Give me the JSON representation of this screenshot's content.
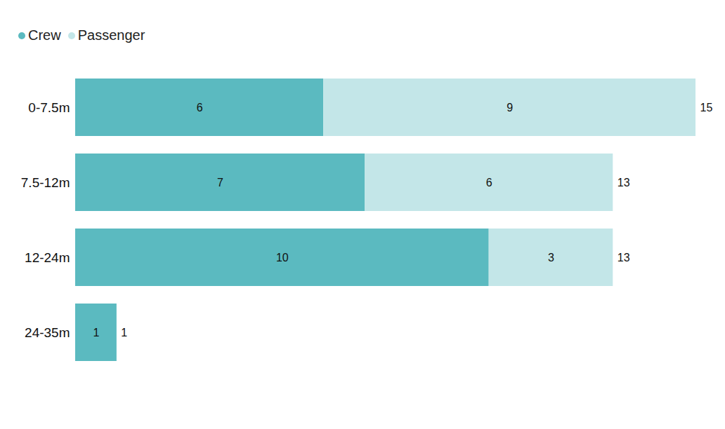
{
  "chart_data": {
    "type": "bar",
    "orientation": "horizontal",
    "stacked": true,
    "data_labels": true,
    "tick_labels": "y",
    "legend": "top-left",
    "categories": [
      "0-7.5m",
      "7.5-12m",
      "12-24m",
      "24-35m"
    ],
    "series": [
      {
        "name": "Crew",
        "color": "#5bbac0",
        "values": [
          6,
          7,
          10,
          1
        ]
      },
      {
        "name": "Passenger",
        "color": "#c3e6e8",
        "values": [
          9,
          6,
          3,
          null
        ]
      }
    ],
    "totals": [
      15,
      13,
      13,
      1
    ],
    "xlim": [
      0,
      15
    ]
  }
}
